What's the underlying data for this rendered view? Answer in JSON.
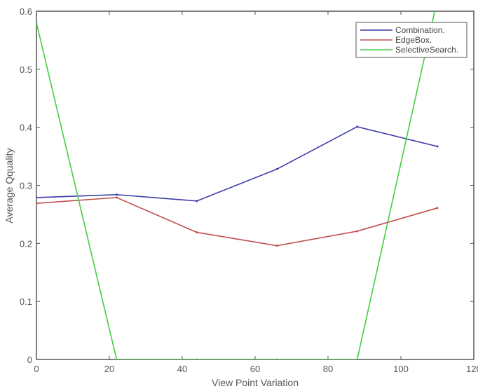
{
  "chart_data": {
    "type": "line",
    "title": "",
    "xlabel": "View Point Variation",
    "ylabel": "Average Qquality",
    "xlim": [
      0,
      120
    ],
    "ylim": [
      0,
      0.6
    ],
    "xticks": [
      0,
      20,
      40,
      60,
      80,
      100,
      120
    ],
    "yticks": [
      0,
      0.1,
      0.2,
      0.3,
      0.4,
      0.5,
      0.6
    ],
    "x": [
      0,
      22,
      44,
      66,
      88,
      110
    ],
    "series": [
      {
        "name": "Combination.",
        "color": "#3a3aa8",
        "values": [
          0.279,
          0.284,
          0.273,
          0.328,
          0.401,
          0.367
        ]
      },
      {
        "name": "EdgeBox.",
        "color": "#c0504d",
        "values": [
          0.269,
          0.279,
          0.219,
          0.196,
          0.221,
          0.261
        ]
      },
      {
        "name": "SelectiveSearch.",
        "color": "#44cc44",
        "values": [
          0.58,
          0,
          0,
          0,
          0,
          0.62
        ]
      }
    ],
    "legend_position": "upper right",
    "grid": false
  }
}
